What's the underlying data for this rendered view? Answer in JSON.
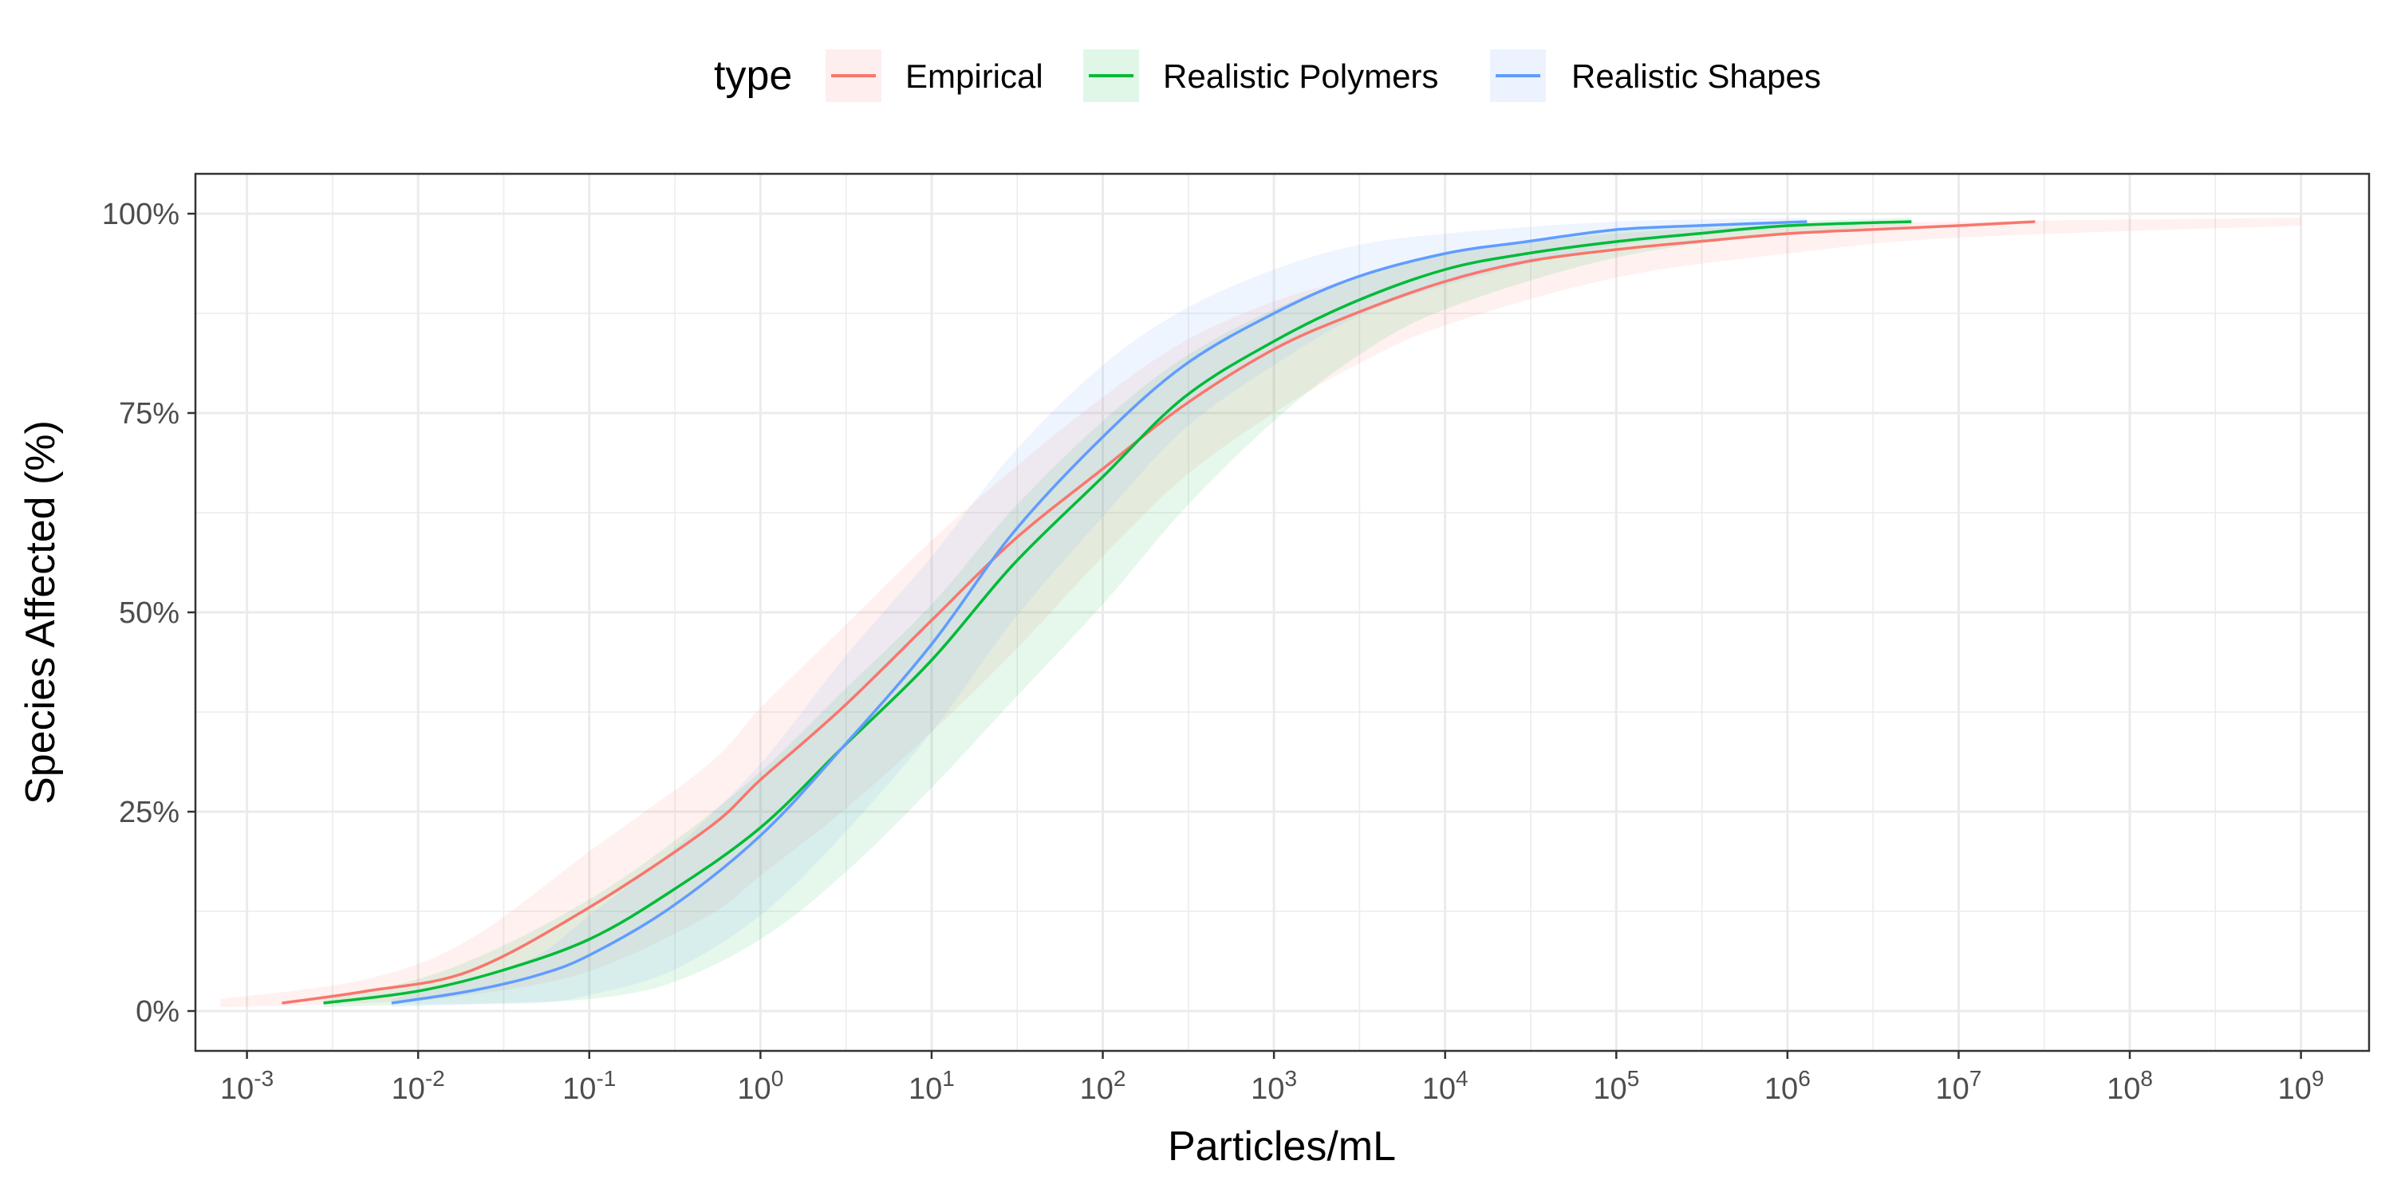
{
  "chart_data": {
    "type": "line",
    "title": "",
    "xlabel": "Particles/mL",
    "ylabel": "Species Affected (%)",
    "x_scale": "log10",
    "xlim": [
      0.0005,
      2500000000
    ],
    "ylim": [
      -0.05,
      1.05
    ],
    "grid": true,
    "legend": {
      "title": "type",
      "placement": "top"
    },
    "x_ticks": [
      {
        "value": 0.001,
        "base": "10",
        "exp": "-3"
      },
      {
        "value": 0.01,
        "base": "10",
        "exp": "-2"
      },
      {
        "value": 0.1,
        "base": "10",
        "exp": "-1"
      },
      {
        "value": 1,
        "base": "10",
        "exp": "0"
      },
      {
        "value": 10,
        "base": "10",
        "exp": "1"
      },
      {
        "value": 100,
        "base": "10",
        "exp": "2"
      },
      {
        "value": 1000,
        "base": "10",
        "exp": "3"
      },
      {
        "value": 10000,
        "base": "10",
        "exp": "4"
      },
      {
        "value": 100000,
        "base": "10",
        "exp": "5"
      },
      {
        "value": 1000000,
        "base": "10",
        "exp": "6"
      },
      {
        "value": 10000000,
        "base": "10",
        "exp": "7"
      },
      {
        "value": 100000000,
        "base": "10",
        "exp": "8"
      },
      {
        "value": 1000000000,
        "base": "10",
        "exp": "9"
      }
    ],
    "y_ticks": [
      {
        "value": 0,
        "label": "0%"
      },
      {
        "value": 0.25,
        "label": "25%"
      },
      {
        "value": 0.5,
        "label": "50%"
      },
      {
        "value": 0.75,
        "label": "75%"
      },
      {
        "value": 1,
        "label": "100%"
      }
    ],
    "series": [
      {
        "name": "Empirical",
        "color": "#F8766D",
        "x": [
          0.0016,
          0.005,
          0.02,
          0.1,
          0.5,
          1,
          3,
          10,
          30,
          100,
          300,
          1000,
          3000,
          10000,
          30000,
          100000,
          300000,
          1000000,
          3000000,
          10000000,
          28000000
        ],
        "y": [
          0.01,
          0.025,
          0.05,
          0.13,
          0.23,
          0.29,
          0.38,
          0.49,
          0.59,
          0.68,
          0.76,
          0.83,
          0.875,
          0.915,
          0.94,
          0.955,
          0.965,
          0.975,
          0.98,
          0.985,
          0.99
        ],
        "band_x": [
          0.0007,
          0.005,
          0.02,
          0.1,
          0.5,
          1,
          3,
          10,
          30,
          100,
          300,
          1000,
          3000,
          10000,
          100000,
          1000000,
          10000000,
          1000000000
        ],
        "band_lower": [
          0.005,
          0.01,
          0.02,
          0.05,
          0.12,
          0.17,
          0.25,
          0.35,
          0.45,
          0.57,
          0.67,
          0.75,
          0.81,
          0.86,
          0.92,
          0.95,
          0.97,
          0.985
        ],
        "band_upper": [
          0.015,
          0.04,
          0.09,
          0.2,
          0.31,
          0.38,
          0.48,
          0.59,
          0.68,
          0.77,
          0.84,
          0.89,
          0.92,
          0.95,
          0.975,
          0.985,
          0.99,
          0.995
        ]
      },
      {
        "name": "Realistic Polymers",
        "color": "#00BA38",
        "x": [
          0.0028,
          0.01,
          0.03,
          0.1,
          0.3,
          1,
          3,
          10,
          30,
          100,
          300,
          1000,
          3000,
          10000,
          30000,
          100000,
          300000,
          1000000,
          5300000
        ],
        "y": [
          0.01,
          0.025,
          0.05,
          0.09,
          0.15,
          0.23,
          0.33,
          0.44,
          0.56,
          0.67,
          0.77,
          0.84,
          0.89,
          0.93,
          0.95,
          0.965,
          0.975,
          0.985,
          0.99
        ],
        "band_x": [
          0.0028,
          0.01,
          0.03,
          0.1,
          0.3,
          1,
          3,
          10,
          30,
          100,
          300,
          1000,
          3000,
          10000,
          100000,
          1000000,
          5300000
        ],
        "band_lower": [
          0.005,
          0.008,
          0.01,
          0.015,
          0.035,
          0.09,
          0.17,
          0.28,
          0.39,
          0.51,
          0.63,
          0.74,
          0.82,
          0.88,
          0.945,
          0.975,
          0.985
        ],
        "band_upper": [
          0.015,
          0.04,
          0.08,
          0.14,
          0.21,
          0.3,
          0.4,
          0.51,
          0.63,
          0.74,
          0.82,
          0.88,
          0.92,
          0.95,
          0.98,
          0.99,
          0.995
        ]
      },
      {
        "name": "Realistic Shapes",
        "color": "#619CFF",
        "x": [
          0.007,
          0.02,
          0.05,
          0.1,
          0.3,
          1,
          3,
          10,
          30,
          100,
          300,
          1000,
          3000,
          10000,
          30000,
          100000,
          300000,
          1300000
        ],
        "y": [
          0.01,
          0.025,
          0.045,
          0.07,
          0.13,
          0.22,
          0.33,
          0.46,
          0.6,
          0.72,
          0.81,
          0.875,
          0.92,
          0.95,
          0.965,
          0.98,
          0.985,
          0.99
        ],
        "band_x": [
          0.007,
          0.02,
          0.05,
          0.1,
          0.3,
          1,
          3,
          10,
          30,
          100,
          300,
          1000,
          3000,
          10000,
          100000,
          1300000
        ],
        "band_lower": [
          0.005,
          0.008,
          0.01,
          0.02,
          0.05,
          0.12,
          0.22,
          0.35,
          0.49,
          0.62,
          0.73,
          0.81,
          0.87,
          0.91,
          0.96,
          0.985
        ],
        "band_upper": [
          0.015,
          0.04,
          0.07,
          0.12,
          0.2,
          0.31,
          0.44,
          0.57,
          0.7,
          0.81,
          0.88,
          0.93,
          0.96,
          0.975,
          0.99,
          0.995
        ]
      }
    ]
  }
}
